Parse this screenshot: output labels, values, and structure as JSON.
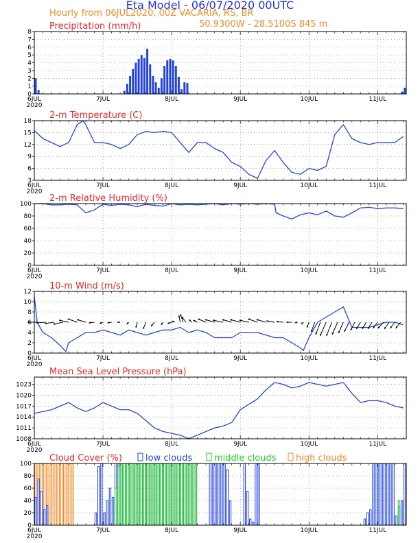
{
  "header": {
    "title": "Eta Model - 06/07/2020 00UTC",
    "subtitle": "Hourly from 06JUL2020, 00Z  VACARIA, RS, BR",
    "coords": "50.9300W - 28.5100S     845  m"
  },
  "colors": {
    "line": "#2244dd",
    "title": "#e82828",
    "orange": "#f08a24",
    "green": "#22cc22",
    "wind": "#000000"
  },
  "x_axis": {
    "tick_labels": [
      "6JUL",
      "7JUL",
      "8JUL",
      "9JUL",
      "10JUL",
      "11JUL"
    ],
    "tick_hours": [
      0,
      24,
      48,
      72,
      96,
      120
    ],
    "first_label_year": "2020",
    "hours_total": 130
  },
  "chart_data": [
    {
      "type": "bar",
      "name": "precipitation",
      "title": "Precipitation (mm/h)",
      "ylim": [
        0,
        8
      ],
      "yticks": [
        0,
        1,
        2,
        3,
        4,
        5,
        6,
        7,
        8
      ],
      "x": [
        0,
        1,
        31,
        32,
        33,
        34,
        35,
        36,
        37,
        38,
        39,
        40,
        41,
        42,
        43,
        44,
        45,
        46,
        47,
        48,
        49,
        50,
        51,
        52,
        53,
        128,
        129
      ],
      "values": [
        2,
        0.5,
        0.4,
        1.3,
        2.3,
        3.2,
        4,
        4.5,
        5,
        4.6,
        5.8,
        3.8,
        2.3,
        1.5,
        0.8,
        2,
        3.6,
        4.3,
        4.5,
        4.3,
        3.6,
        2.2,
        0.6,
        1.5,
        1.4,
        0.3,
        0.8
      ]
    },
    {
      "type": "line",
      "name": "temperature",
      "title": "2-m Temperature (C)",
      "ylim": [
        3,
        18
      ],
      "yticks": [
        3,
        6,
        9,
        12,
        15,
        18
      ],
      "x": [
        0,
        3,
        6,
        9,
        12,
        15,
        17,
        18,
        21,
        24,
        27,
        30,
        33,
        36,
        39,
        42,
        45,
        48,
        51,
        54,
        57,
        60,
        63,
        66,
        69,
        72,
        75,
        78,
        81,
        84,
        87,
        90,
        93,
        96,
        99,
        102,
        105,
        108,
        111,
        114,
        117,
        120,
        123,
        126,
        129
      ],
      "values": [
        15.5,
        13.5,
        12.5,
        11.5,
        12.5,
        17,
        18,
        17,
        12.5,
        12.5,
        12,
        11,
        12,
        14.5,
        15.3,
        15,
        15.3,
        15,
        12.5,
        10,
        12.5,
        12.5,
        11,
        10,
        7.5,
        6.5,
        4.5,
        3.5,
        8,
        10.5,
        7.5,
        5,
        4.5,
        6,
        5.5,
        6.5,
        14.5,
        17,
        13.5,
        12.5,
        12,
        12.5,
        12.5,
        12.5,
        14
      ]
    },
    {
      "type": "line",
      "name": "relative_humidity",
      "title": "2-m Relative Humidity (%)",
      "ylim": [
        0,
        100
      ],
      "yticks": [
        0,
        20,
        40,
        60,
        80,
        100
      ],
      "x": [
        0,
        3,
        6,
        9,
        12,
        15,
        18,
        21,
        24,
        27,
        30,
        33,
        36,
        39,
        42,
        45,
        48,
        51,
        54,
        57,
        60,
        63,
        66,
        69,
        72,
        75,
        78,
        81,
        84,
        84.5,
        87,
        90,
        93,
        96,
        99,
        102,
        105,
        108,
        111,
        114,
        117,
        120,
        123,
        126,
        129
      ],
      "values": [
        100,
        100,
        98,
        98,
        99,
        98,
        85,
        90,
        99,
        97,
        99,
        98,
        95,
        99,
        97,
        96,
        100,
        98,
        99,
        98,
        99,
        100,
        98,
        100,
        99,
        100,
        99,
        100,
        99,
        85,
        80,
        75,
        82,
        85,
        82,
        88,
        80,
        78,
        85,
        93,
        94,
        92,
        93,
        93,
        92
      ]
    },
    {
      "type": "line",
      "name": "wind",
      "title": "10-m Wind (m/s)",
      "ylim": [
        0,
        12
      ],
      "yticks": [
        0,
        2,
        4,
        6,
        8,
        10,
        12
      ],
      "x": [
        0,
        1,
        3,
        6,
        9,
        11,
        12,
        15,
        18,
        21,
        24,
        27,
        30,
        33,
        36,
        39,
        42,
        45,
        48,
        51,
        54,
        57,
        60,
        63,
        66,
        69,
        72,
        75,
        78,
        81,
        84,
        87,
        90,
        93,
        94,
        96,
        99,
        102,
        105,
        108,
        111,
        114,
        117,
        120,
        123,
        126,
        129
      ],
      "values": [
        11,
        6,
        4,
        3,
        1.5,
        0.3,
        2,
        3,
        4,
        4,
        4.5,
        4,
        3.5,
        4.5,
        4,
        3.5,
        4,
        4.5,
        4.5,
        5,
        4,
        4.5,
        4,
        3,
        3,
        3,
        4,
        4,
        4,
        3.5,
        3,
        3,
        2,
        1,
        0.5,
        3,
        6,
        7,
        8,
        9,
        5,
        5,
        5,
        5.5,
        6,
        6,
        5.5
      ],
      "vectors": [
        {
          "h": 1,
          "dx": -14,
          "dy": 0
        },
        {
          "h": 4,
          "dx": -14,
          "dy": 1
        },
        {
          "h": 7,
          "dx": -14,
          "dy": 2
        },
        {
          "h": 10,
          "dx": -14,
          "dy": 3
        },
        {
          "h": 12,
          "dx": -14,
          "dy": -3
        },
        {
          "h": 15,
          "dx": -14,
          "dy": -5
        },
        {
          "h": 18,
          "dx": -13,
          "dy": -4
        },
        {
          "h": 21,
          "dx": -8,
          "dy": 1
        },
        {
          "h": 24,
          "dx": -5,
          "dy": 2
        },
        {
          "h": 27,
          "dx": -6,
          "dy": 1
        },
        {
          "h": 30,
          "dx": -4,
          "dy": 0
        },
        {
          "h": 33,
          "dx": -3,
          "dy": 3
        },
        {
          "h": 36,
          "dx": -2,
          "dy": 8
        },
        {
          "h": 39,
          "dx": -4,
          "dy": 10
        },
        {
          "h": 42,
          "dx": -5,
          "dy": 6
        },
        {
          "h": 45,
          "dx": -3,
          "dy": 4
        },
        {
          "h": 48,
          "dx": -6,
          "dy": 2
        },
        {
          "h": 49,
          "dx": -4,
          "dy": -2
        },
        {
          "h": 51,
          "dx": -2,
          "dy": -10
        },
        {
          "h": 52,
          "dx": -4,
          "dy": -12
        },
        {
          "h": 53,
          "dx": -6,
          "dy": -8
        },
        {
          "h": 55,
          "dx": -4,
          "dy": -4
        },
        {
          "h": 57,
          "dx": -6,
          "dy": -3
        },
        {
          "h": 60,
          "dx": -12,
          "dy": -5
        },
        {
          "h": 63,
          "dx": -14,
          "dy": -4
        },
        {
          "h": 66,
          "dx": -15,
          "dy": -3
        },
        {
          "h": 69,
          "dx": -14,
          "dy": -4
        },
        {
          "h": 72,
          "dx": -15,
          "dy": -4
        },
        {
          "h": 75,
          "dx": -14,
          "dy": -3
        },
        {
          "h": 78,
          "dx": -14,
          "dy": -5
        },
        {
          "h": 81,
          "dx": -14,
          "dy": -4
        },
        {
          "h": 84,
          "dx": -12,
          "dy": -2
        },
        {
          "h": 87,
          "dx": -10,
          "dy": -1
        },
        {
          "h": 90,
          "dx": -8,
          "dy": 0
        },
        {
          "h": 92,
          "dx": -4,
          "dy": 1
        },
        {
          "h": 94,
          "dx": -3,
          "dy": 3
        },
        {
          "h": 96,
          "dx": -3,
          "dy": 8
        },
        {
          "h": 98,
          "dx": -5,
          "dy": 14
        },
        {
          "h": 100,
          "dx": -7,
          "dy": 18
        },
        {
          "h": 102,
          "dx": -9,
          "dy": 20
        },
        {
          "h": 104,
          "dx": -8,
          "dy": 20
        },
        {
          "h": 106,
          "dx": -8,
          "dy": 18
        },
        {
          "h": 108,
          "dx": -7,
          "dy": 16
        },
        {
          "h": 110,
          "dx": -7,
          "dy": 14
        },
        {
          "h": 112,
          "dx": -6,
          "dy": 12
        },
        {
          "h": 114,
          "dx": -6,
          "dy": 10
        },
        {
          "h": 116,
          "dx": -6,
          "dy": 10
        },
        {
          "h": 118,
          "dx": -6,
          "dy": 10
        },
        {
          "h": 120,
          "dx": -7,
          "dy": 9
        },
        {
          "h": 122,
          "dx": -8,
          "dy": 9
        },
        {
          "h": 124,
          "dx": -7,
          "dy": 10
        },
        {
          "h": 126,
          "dx": -7,
          "dy": 9
        },
        {
          "h": 128,
          "dx": -7,
          "dy": 9
        }
      ]
    },
    {
      "type": "line",
      "name": "mslp",
      "title": "Mean Sea Level Pressure (hPa)",
      "ylim": [
        1008,
        1025
      ],
      "yticks": [
        1008,
        1011,
        1014,
        1017,
        1020,
        1023
      ],
      "x": [
        0,
        3,
        6,
        9,
        12,
        15,
        18,
        21,
        24,
        27,
        30,
        33,
        36,
        39,
        42,
        45,
        48,
        51,
        54,
        57,
        60,
        63,
        66,
        69,
        72,
        75,
        78,
        81,
        84,
        87,
        90,
        93,
        96,
        99,
        102,
        105,
        108,
        111,
        114,
        117,
        120,
        123,
        126,
        129
      ],
      "values": [
        1015,
        1015.5,
        1016,
        1017,
        1018,
        1016.5,
        1015.5,
        1016.5,
        1018,
        1017,
        1016,
        1016,
        1015,
        1013,
        1011,
        1010,
        1009.5,
        1009,
        1008,
        1009,
        1010,
        1011,
        1011.5,
        1012.5,
        1016,
        1017.5,
        1019,
        1021.5,
        1023.5,
        1023,
        1022,
        1022.5,
        1023.5,
        1023,
        1022.5,
        1023,
        1023.5,
        1020.5,
        1018,
        1018.5,
        1018.5,
        1018,
        1017,
        1016.5
      ]
    },
    {
      "type": "bar",
      "name": "cloud_cover",
      "title": "Cloud Cover (%)",
      "ylim": [
        0,
        100
      ],
      "yticks": [
        0,
        20,
        40,
        60,
        80,
        100
      ],
      "legend": {
        "low": "low clouds",
        "middle": "middle clouds",
        "high": "high clouds"
      },
      "series": [
        {
          "name": "low clouds",
          "x": [
            0,
            1,
            2,
            3,
            4,
            21,
            22,
            23,
            24,
            25,
            26,
            27,
            28,
            29,
            30,
            31,
            32,
            33,
            34,
            35,
            36,
            37,
            38,
            39,
            40,
            41,
            42,
            43,
            44,
            45,
            46,
            47,
            48,
            49,
            50,
            51,
            52,
            53,
            54,
            55,
            56,
            61,
            62,
            63,
            64,
            65,
            66,
            67,
            68,
            73,
            74,
            75,
            76,
            77,
            78,
            115,
            116,
            117,
            118,
            119,
            120,
            121,
            122,
            123,
            124,
            125,
            126,
            127,
            128,
            129
          ],
          "values": [
            45,
            75,
            55,
            25,
            32,
            20,
            95,
            100,
            20,
            40,
            60,
            45,
            100,
            100,
            100,
            100,
            100,
            100,
            100,
            100,
            100,
            100,
            100,
            100,
            100,
            100,
            100,
            100,
            100,
            100,
            100,
            100,
            100,
            100,
            100,
            100,
            100,
            100,
            100,
            100,
            100,
            100,
            100,
            100,
            100,
            100,
            100,
            90,
            40,
            100,
            55,
            10,
            5,
            100,
            100,
            10,
            20,
            25,
            100,
            100,
            100,
            100,
            100,
            100,
            100,
            100,
            15,
            30,
            40,
            100
          ]
        },
        {
          "name": "middle clouds",
          "x": [
            28,
            29,
            30,
            31,
            32,
            33,
            34,
            35,
            36,
            37,
            38,
            39,
            40,
            41,
            42,
            43,
            44,
            45,
            46,
            47,
            48,
            49,
            50,
            51,
            52,
            53,
            54,
            55,
            56,
            127
          ],
          "values": [
            60,
            95,
            100,
            100,
            100,
            100,
            100,
            100,
            100,
            100,
            100,
            100,
            100,
            100,
            100,
            100,
            100,
            100,
            100,
            100,
            100,
            100,
            100,
            100,
            100,
            100,
            100,
            100,
            100,
            40
          ]
        },
        {
          "name": "high clouds",
          "x": [
            0,
            1,
            2,
            3,
            4,
            5,
            6,
            7,
            8,
            9,
            10,
            11,
            12,
            13
          ],
          "values": [
            100,
            100,
            100,
            100,
            100,
            100,
            100,
            100,
            100,
            100,
            100,
            100,
            100,
            100
          ]
        }
      ]
    }
  ]
}
